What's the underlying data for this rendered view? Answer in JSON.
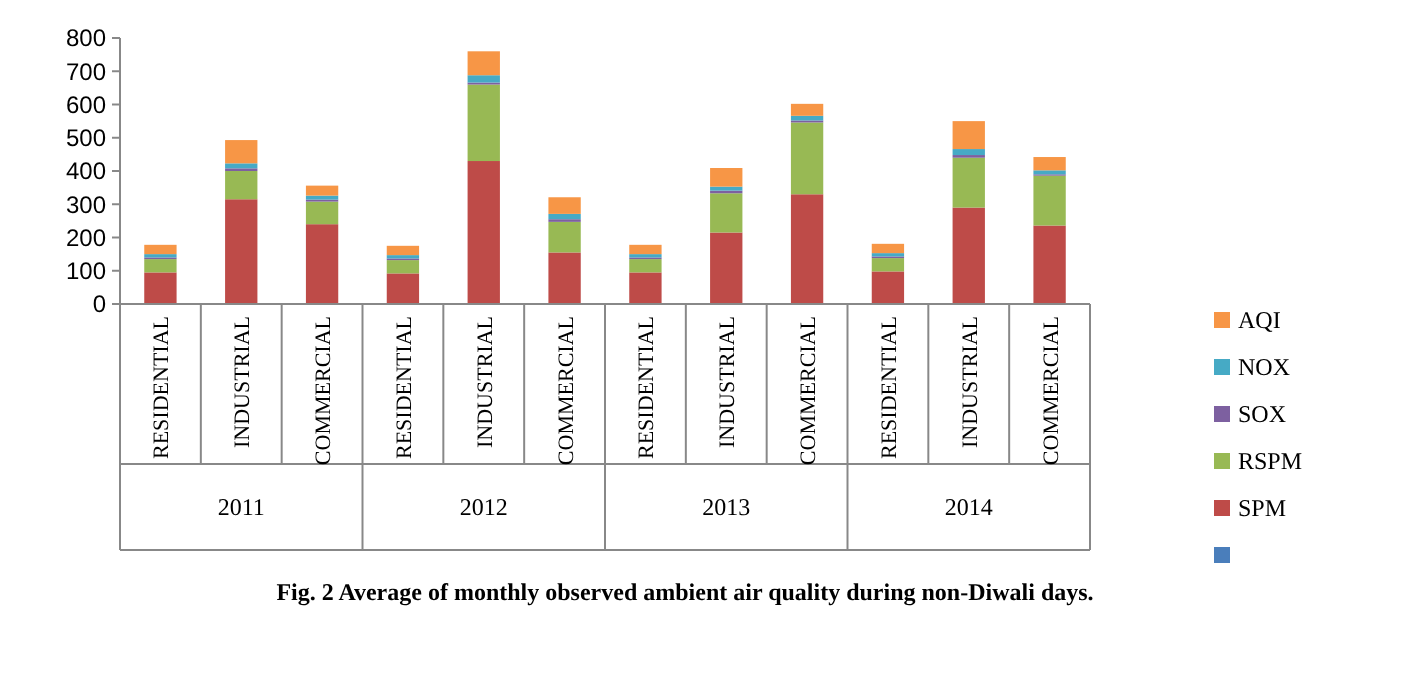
{
  "chart_data": {
    "type": "bar",
    "stacked": true,
    "title": "Fig. 2 Average of monthly observed ambient air quality during non-Diwali days.",
    "categories": [
      "RESIDENTIAL",
      "INDUSTRIAL",
      "COMMERCIAL",
      "RESIDENTIAL",
      "INDUSTRIAL",
      "COMMERCIAL",
      "RESIDENTIAL",
      "INDUSTRIAL",
      "COMMERCIAL",
      "RESIDENTIAL",
      "INDUSTRIAL",
      "COMMERCIAL"
    ],
    "annotations": [
      "2011",
      "2012",
      "2013",
      "2014"
    ],
    "series": [
      {
        "color": "#4a7ebb",
        "values": [
          0,
          0,
          0,
          0,
          0,
          0,
          0,
          0,
          0,
          0,
          0,
          0
        ]
      },
      {
        "name": "SPM",
        "color": "#be4b48",
        "values": [
          95,
          315,
          240,
          92,
          430,
          155,
          95,
          215,
          330,
          98,
          290,
          236
        ]
      },
      {
        "name": "RSPM",
        "color": "#98b954",
        "values": [
          40,
          85,
          68,
          40,
          230,
          92,
          40,
          118,
          216,
          40,
          150,
          150
        ]
      },
      {
        "name": "SOX",
        "color": "#7d60a0",
        "values": [
          5,
          8,
          6,
          5,
          6,
          8,
          5,
          8,
          6,
          5,
          8,
          4
        ]
      },
      {
        "name": "NOX",
        "color": "#46aac5",
        "values": [
          10,
          15,
          12,
          10,
          22,
          16,
          10,
          12,
          14,
          10,
          18,
          12
        ]
      },
      {
        "name": "AQI",
        "color": "#f79646",
        "values": [
          28,
          70,
          30,
          28,
          72,
          50,
          28,
          56,
          36,
          28,
          84,
          40
        ]
      }
    ],
    "ylim": [
      0,
      800
    ],
    "yticks": [
      0,
      100,
      200,
      300,
      400,
      500,
      600,
      700,
      800
    ],
    "legend": "right"
  }
}
